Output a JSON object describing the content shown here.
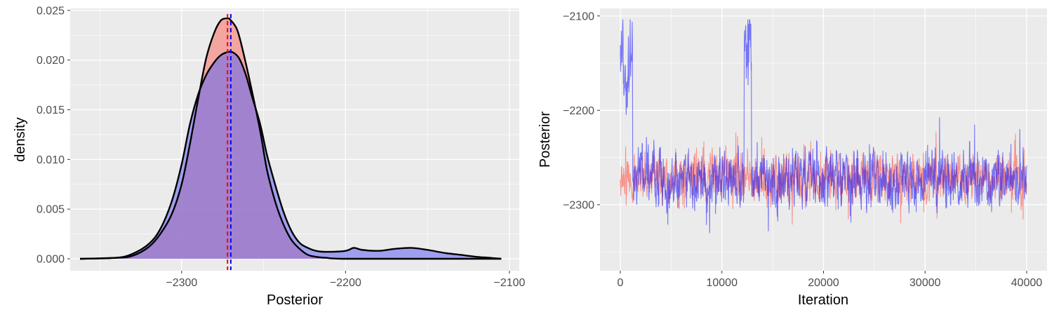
{
  "chart_data": [
    {
      "type": "area",
      "title": "",
      "xlabel": "Posterior",
      "ylabel": "density",
      "xlim": [
        -2368,
        -2094
      ],
      "ylim": [
        -0.0012,
        0.0252
      ],
      "x_ticks": [
        -2300,
        -2200,
        -2100
      ],
      "x_tick_labels": [
        "−2300",
        "−2200",
        "−2100"
      ],
      "y_ticks": [
        0.0,
        0.005,
        0.01,
        0.015,
        0.02,
        0.025
      ],
      "y_tick_labels": [
        "0.000",
        "0.005",
        "0.010",
        "0.015",
        "0.020",
        "0.025"
      ],
      "grid": true,
      "legend": "none",
      "series": [
        {
          "color": "#ff0000",
          "fill": "#f8766d",
          "x": [
            -2362,
            -2340,
            -2330,
            -2320,
            -2313,
            -2306,
            -2300,
            -2295,
            -2290,
            -2285,
            -2280,
            -2276,
            -2272,
            -2270,
            -2266,
            -2262,
            -2257,
            -2252,
            -2248,
            -2243,
            -2238,
            -2233,
            -2228,
            -2223,
            -2218,
            -2212,
            -2200,
            -2150,
            -2105
          ],
          "y": [
            0.0,
            0.0001,
            0.0003,
            0.0012,
            0.0025,
            0.0045,
            0.0075,
            0.0115,
            0.016,
            0.0202,
            0.0228,
            0.024,
            0.0242,
            0.024,
            0.023,
            0.0205,
            0.0168,
            0.0128,
            0.009,
            0.0058,
            0.0035,
            0.0019,
            0.001,
            0.0004,
            0.0002,
            0.0001,
            0.0,
            0.0,
            0.0
          ],
          "mean_line": -2272
        },
        {
          "color": "#0000ff",
          "fill": "#6b6bf0",
          "x": [
            -2362,
            -2340,
            -2330,
            -2320,
            -2313,
            -2306,
            -2300,
            -2295,
            -2290,
            -2285,
            -2280,
            -2276,
            -2272,
            -2269,
            -2265,
            -2261,
            -2257,
            -2252,
            -2248,
            -2243,
            -2238,
            -2233,
            -2228,
            -2223,
            -2218,
            -2212,
            -2200,
            -2195,
            -2190,
            -2180,
            -2170,
            -2160,
            -2150,
            -2140,
            -2130,
            -2120,
            -2112,
            -2105
          ],
          "y": [
            0.0,
            0.0001,
            0.0005,
            0.0015,
            0.003,
            0.0058,
            0.0095,
            0.0135,
            0.0165,
            0.0185,
            0.0198,
            0.0205,
            0.0208,
            0.0208,
            0.0202,
            0.0186,
            0.0163,
            0.0135,
            0.0105,
            0.0075,
            0.0048,
            0.0028,
            0.0016,
            0.0011,
            0.0008,
            0.0007,
            0.0008,
            0.0011,
            0.0009,
            0.0008,
            0.001,
            0.0011,
            0.0009,
            0.0006,
            0.0004,
            0.0002,
            0.0001,
            0.0
          ],
          "mean_line": -2270
        }
      ]
    },
    {
      "type": "line",
      "title": "",
      "xlabel": "Iteration",
      "ylabel": "Posterior",
      "xlim": [
        -2000,
        42000
      ],
      "ylim": [
        -2370,
        -2092
      ],
      "x_ticks": [
        0,
        10000,
        20000,
        30000,
        40000
      ],
      "x_tick_labels": [
        "0",
        "10000",
        "20000",
        "30000",
        "40000"
      ],
      "y_ticks": [
        -2300,
        -2200,
        -2100
      ],
      "y_tick_labels": [
        "−2300",
        "−2200",
        "−2100"
      ],
      "grid": true,
      "legend": "none",
      "series": [
        {
          "color": "#f8766d",
          "n_points": 40000,
          "center": -2272,
          "spread": 13,
          "min": -2335,
          "max": -2218
        },
        {
          "color": "#0000ff",
          "n_points": 40000,
          "center": -2272,
          "spread": 16,
          "min": -2362,
          "max": -2104,
          "excursions": [
            {
              "x_start": 0,
              "x_end": 1200,
              "level": -2160
            },
            {
              "x_start": 12200,
              "x_end": 12900,
              "level": -2130
            }
          ]
        }
      ]
    }
  ]
}
